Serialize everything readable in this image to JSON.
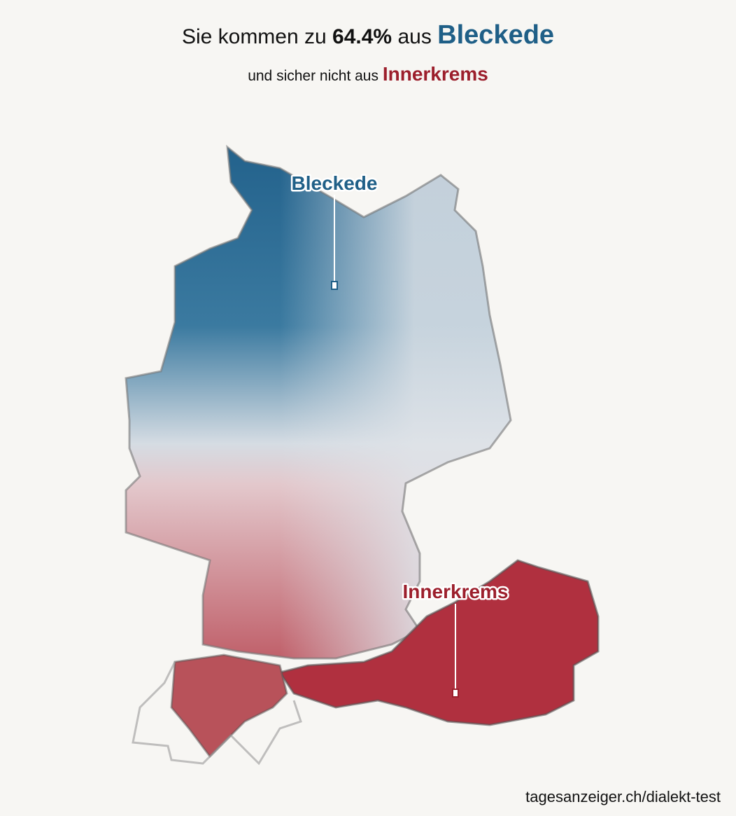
{
  "header": {
    "title": {
      "prefix": "Sie kommen zu",
      "percent": "64.4%",
      "middle": "aus",
      "best_place": "Bleckede"
    },
    "subtitle": {
      "prefix": "und sicher nicht aus",
      "worst_place": "Innerkrems"
    }
  },
  "map": {
    "labels": [
      {
        "text": "Bleckede"
      },
      {
        "text": "Innerkrems"
      }
    ]
  },
  "footer": {
    "source": "tagesanzeiger.ch/dialekt-test"
  }
}
